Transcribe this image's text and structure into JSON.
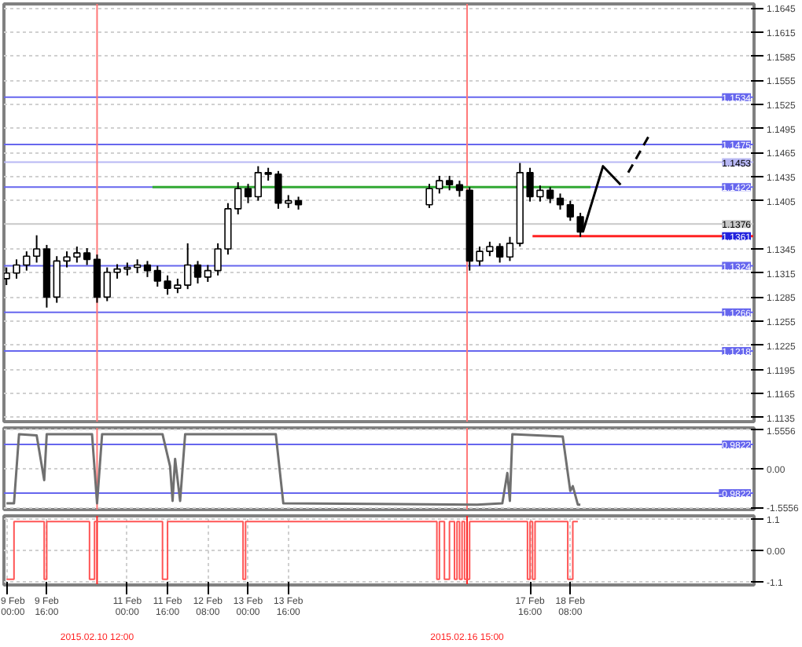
{
  "chart_data": [
    {
      "type": "candlestick",
      "x": [
        "2015-02-09T00:00",
        "2015-02-09T04:00",
        "2015-02-09T08:00",
        "2015-02-09T12:00",
        "2015-02-09T16:00",
        "2015-02-09T20:00",
        "2015-02-10T00:00",
        "2015-02-10T04:00",
        "2015-02-10T08:00",
        "2015-02-10T12:00",
        "2015-02-10T16:00",
        "2015-02-10T20:00",
        "2015-02-11T00:00",
        "2015-02-11T04:00",
        "2015-02-11T08:00",
        "2015-02-11T12:00",
        "2015-02-11T16:00",
        "2015-02-11T20:00",
        "2015-02-12T00:00",
        "2015-02-12T04:00",
        "2015-02-12T08:00",
        "2015-02-12T12:00",
        "2015-02-12T16:00",
        "2015-02-12T20:00",
        "2015-02-13T00:00",
        "2015-02-13T04:00",
        "2015-02-13T08:00",
        "2015-02-13T12:00",
        "2015-02-13T16:00",
        "2015-02-13T20:00",
        "2015-02-16T00:00",
        "2015-02-16T04:00",
        "2015-02-16T08:00",
        "2015-02-16T12:00",
        "2015-02-16T16:00",
        "2015-02-16T20:00",
        "2015-02-17T00:00",
        "2015-02-17T04:00",
        "2015-02-17T08:00",
        "2015-02-17T12:00",
        "2015-02-17T16:00",
        "2015-02-17T20:00",
        "2015-02-18T00:00",
        "2015-02-18T04:00",
        "2015-02-18T08:00",
        "2015-02-18T12:00"
      ],
      "ohlc": [
        [
          1.1308,
          1.1322,
          1.13,
          1.1315
        ],
        [
          1.1315,
          1.1332,
          1.1308,
          1.1325
        ],
        [
          1.1325,
          1.1342,
          1.1318,
          1.1336
        ],
        [
          1.1336,
          1.1362,
          1.1328,
          1.1345
        ],
        [
          1.1345,
          1.135,
          1.1272,
          1.1285
        ],
        [
          1.1285,
          1.1336,
          1.1278,
          1.133
        ],
        [
          1.133,
          1.1342,
          1.1322,
          1.1335
        ],
        [
          1.1335,
          1.1348,
          1.1328,
          1.134
        ],
        [
          1.134,
          1.1346,
          1.1325,
          1.1332
        ],
        [
          1.1332,
          1.1338,
          1.1278,
          1.1285
        ],
        [
          1.1285,
          1.1322,
          1.128,
          1.1316
        ],
        [
          1.1316,
          1.1326,
          1.1308,
          1.132
        ],
        [
          1.132,
          1.1328,
          1.1312,
          1.1322
        ],
        [
          1.1322,
          1.1332,
          1.1315,
          1.1325
        ],
        [
          1.1325,
          1.133,
          1.131,
          1.1318
        ],
        [
          1.1318,
          1.1324,
          1.1298,
          1.1305
        ],
        [
          1.1305,
          1.1312,
          1.1288,
          1.1296
        ],
        [
          1.1296,
          1.1308,
          1.129,
          1.13
        ],
        [
          1.13,
          1.1352,
          1.1295,
          1.1325
        ],
        [
          1.1325,
          1.133,
          1.1302,
          1.131
        ],
        [
          1.131,
          1.1325,
          1.1304,
          1.1318
        ],
        [
          1.1318,
          1.1352,
          1.1312,
          1.1345
        ],
        [
          1.1345,
          1.1402,
          1.1338,
          1.1395
        ],
        [
          1.1395,
          1.1428,
          1.1388,
          1.142
        ],
        [
          1.142,
          1.1426,
          1.1402,
          1.141
        ],
        [
          1.141,
          1.1448,
          1.1405,
          1.144
        ],
        [
          1.144,
          1.1446,
          1.143,
          1.1438
        ],
        [
          1.1438,
          1.1442,
          1.1395,
          1.1402
        ],
        [
          1.1402,
          1.1412,
          1.1396,
          1.1405
        ],
        [
          1.1405,
          1.141,
          1.1394,
          1.14
        ],
        [
          1.14,
          1.1426,
          1.1396,
          1.142
        ],
        [
          1.142,
          1.1436,
          1.1414,
          1.143
        ],
        [
          1.143,
          1.1436,
          1.1418,
          1.1425
        ],
        [
          1.1425,
          1.143,
          1.141,
          1.1418
        ],
        [
          1.1418,
          1.1422,
          1.1318,
          1.133
        ],
        [
          1.133,
          1.1348,
          1.1324,
          1.1342
        ],
        [
          1.1342,
          1.1354,
          1.1336,
          1.1348
        ],
        [
          1.1348,
          1.1352,
          1.1328,
          1.1335
        ],
        [
          1.1335,
          1.136,
          1.133,
          1.1352
        ],
        [
          1.1352,
          1.1452,
          1.1348,
          1.144
        ],
        [
          1.144,
          1.1446,
          1.1404,
          1.141
        ],
        [
          1.141,
          1.1424,
          1.1404,
          1.1418
        ],
        [
          1.1418,
          1.1422,
          1.1402,
          1.1408
        ],
        [
          1.1408,
          1.1414,
          1.1394,
          1.14
        ],
        [
          1.14,
          1.1405,
          1.138,
          1.1385
        ],
        [
          1.1385,
          1.139,
          1.136,
          1.1366
        ]
      ],
      "series": [
        {
          "type": "line",
          "color": "#33aa33",
          "x": [
            "2015-02-11T10:00",
            "2015-02-18T16:00"
          ],
          "values": [
            1.1422,
            1.1422
          ]
        },
        {
          "type": "line",
          "color": "#ff2222",
          "x": [
            "2015-02-17T17:00",
            "2015-02-21T09:00"
          ],
          "values": [
            1.1361,
            1.1361
          ]
        },
        {
          "type": "line",
          "color": "#000000",
          "line_style": "solid",
          "x": [
            "2015-02-18T13:00",
            "2015-02-18T21:00",
            "2015-02-19T04:00"
          ],
          "values": [
            1.1366,
            1.1448,
            1.1425
          ]
        },
        {
          "type": "line",
          "color": "#000000",
          "line_style": "dashed",
          "x": [
            "2015-02-19T07:00",
            "2015-02-19T16:00"
          ],
          "values": [
            1.144,
            1.149
          ]
        }
      ],
      "xlim": [
        "2015-02-08T23:00",
        "2015-02-21T09:00"
      ],
      "ylim": [
        1.113,
        1.165
      ],
      "yticks": [
        1.1645,
        1.1615,
        1.1585,
        1.1555,
        1.1525,
        1.1495,
        1.1465,
        1.1435,
        1.1405,
        1.1345,
        1.1315,
        1.1285,
        1.1255,
        1.1225,
        1.1195,
        1.1165,
        1.1135
      ],
      "grid": true,
      "tick_labels": "y",
      "ref_lines": [
        {
          "axis": "y",
          "value": 1.1534,
          "label": "1.1534",
          "color": "#6666ee"
        },
        {
          "axis": "y",
          "value": 1.1475,
          "label": "1.1475",
          "color": "#6666ee"
        },
        {
          "axis": "y",
          "value": 1.1453,
          "label": "1.1453",
          "color": "#b8b8f4"
        },
        {
          "axis": "y",
          "value": 1.1422,
          "label": "1.1422",
          "color": "#6666ee"
        },
        {
          "axis": "y",
          "value": 1.1376,
          "label": "1.1376",
          "color": "#c8c8c8"
        },
        {
          "axis": "y",
          "value": 1.1324,
          "label": "1.1324",
          "color": "#6666ee"
        },
        {
          "axis": "y",
          "value": 1.1266,
          "label": "1.1266",
          "color": "#6666ee"
        },
        {
          "axis": "y",
          "value": 1.1218,
          "label": "1.1218",
          "color": "#6666ee"
        },
        {
          "axis": "x",
          "value": "2015-02-10T12:00",
          "color": "#ff7777"
        },
        {
          "axis": "x",
          "value": "2015-02-16T15:00",
          "color": "#ff7777"
        }
      ],
      "annotations": [
        {
          "text": "1.1361",
          "x": "2015-02-21T09:00",
          "y": 1.1361
        }
      ]
    },
    {
      "type": "line",
      "color": "#707070",
      "x": [
        "2015-02-09T00:00",
        "2015-02-09T03:00",
        "2015-02-09T05:00",
        "2015-02-09T12:00",
        "2015-02-09T15:00",
        "2015-02-09T16:00",
        "2015-02-10T10:00",
        "2015-02-10T12:00",
        "2015-02-10T14:00",
        "2015-02-11T14:00",
        "2015-02-11T17:00",
        "2015-02-11T18:00",
        "2015-02-11T19:00",
        "2015-02-11T21:00",
        "2015-02-11T23:00",
        "2015-02-13T11:00",
        "2015-02-13T14:00",
        "2015-02-16T19:00",
        "2015-02-17T05:00",
        "2015-02-17T07:00",
        "2015-02-17T08:00",
        "2015-02-17T09:00",
        "2015-02-18T05:00",
        "2015-02-18T08:00",
        "2015-02-18T09:00",
        "2015-02-18T11:00",
        "2015-02-18T12:00"
      ],
      "values": [
        -1.4,
        -1.4,
        1.4,
        1.35,
        -0.46,
        1.4,
        1.4,
        -1.4,
        1.4,
        1.4,
        0.1,
        -1.3,
        0.4,
        -1.3,
        1.4,
        1.4,
        -1.4,
        -1.45,
        -1.4,
        -0.17,
        -1.3,
        1.4,
        1.3,
        -0.9,
        -0.7,
        -1.45,
        -1.45
      ],
      "xlim": [
        "2015-02-08T23:00",
        "2015-02-21T09:00"
      ],
      "ylim": [
        -1.65,
        1.65
      ],
      "yticks": [
        {
          "value": 1.5556,
          "label": "1.5556"
        },
        {
          "value": 0,
          "label": "0.00"
        },
        {
          "value": -1.5556,
          "label": "-1.5556"
        }
      ],
      "grid": true,
      "tick_labels": "y",
      "ref_lines": [
        {
          "axis": "y",
          "value": 0.9822,
          "label": "0.9822",
          "color": "#6666ee"
        },
        {
          "axis": "y",
          "value": -0.9822,
          "label": "-0.9822",
          "color": "#6666ee"
        },
        {
          "axis": "x",
          "value": "2015-02-10T12:00",
          "color": "#ff7777"
        },
        {
          "axis": "x",
          "value": "2015-02-16T15:00",
          "color": "#ff7777"
        }
      ]
    },
    {
      "type": "step",
      "color": "#ff5555",
      "x": [
        "2015-02-09T00:00",
        "2015-02-09T03:00",
        "2015-02-09T15:00",
        "2015-02-09T16:00",
        "2015-02-10T09:00",
        "2015-02-10T11:00",
        "2015-02-11T14:00",
        "2015-02-11T16:00",
        "2015-02-12T22:00",
        "2015-02-12T23:00",
        "2015-02-16T03:00",
        "2015-02-16T04:00",
        "2015-02-16T06:00",
        "2015-02-16T08:00",
        "2015-02-16T10:00",
        "2015-02-16T11:00",
        "2015-02-16T12:00",
        "2015-02-16T13:00",
        "2015-02-16T14:00",
        "2015-02-16T16:00",
        "2015-02-17T15:00",
        "2015-02-17T16:00",
        "2015-02-17T17:00",
        "2015-02-17T18:00",
        "2015-02-18T07:00",
        "2015-02-18T09:00",
        "2015-02-18T11:00"
      ],
      "values": [
        -1,
        1,
        -1,
        1,
        -1,
        1,
        -1,
        1,
        -1,
        1,
        -1,
        1,
        -1,
        1,
        -1,
        1,
        -1,
        1,
        -1,
        1,
        -1,
        1,
        -1,
        1,
        -1,
        1,
        1
      ],
      "xlim": [
        "2015-02-08T23:00",
        "2015-02-21T09:00"
      ],
      "ylim": [
        -1.2,
        1.2
      ],
      "yticks": [
        1.1,
        {
          "value": 0,
          "label": "0.00"
        },
        -1.1
      ],
      "xticks": [
        {
          "value": "2015-02-09T00:00",
          "label": "9 Feb 00:00"
        },
        {
          "value": "2015-02-09T16:00",
          "label": "9 Feb 16:00"
        },
        {
          "value": "2015-02-11T00:00",
          "label": "11 Feb 00:00"
        },
        {
          "value": "2015-02-11T16:00",
          "label": "11 Feb 16:00"
        },
        {
          "value": "2015-02-12T08:00",
          "label": "12 Feb 08:00"
        },
        {
          "value": "2015-02-13T00:00",
          "label": "13 Feb 00:00"
        },
        {
          "value": "2015-02-13T16:00",
          "label": "13 Feb 16:00"
        },
        {
          "value": "2015-02-17T16:00",
          "label": "17 Feb 16:00"
        },
        {
          "value": "2015-02-18T08:00",
          "label": "18 Feb 08:00"
        }
      ],
      "grid": true,
      "ref_lines": [
        {
          "axis": "x",
          "value": "2015-02-10T12:00",
          "label": "2015.02.10 12:00",
          "color": "#ff2222"
        },
        {
          "axis": "x",
          "value": "2015-02-16T15:00",
          "label": "2015.02.16 15:00",
          "color": "#ff2222"
        }
      ]
    }
  ]
}
